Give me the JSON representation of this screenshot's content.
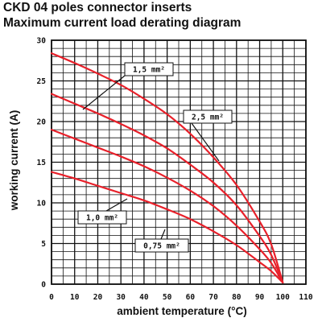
{
  "chart_data": {
    "type": "line",
    "title": "CKD 04 poles connector inserts",
    "subtitle": "Maximum current load derating diagram",
    "xlabel": "ambient temperature (°C)",
    "ylabel": "working current (A)",
    "xlim": [
      0,
      110
    ],
    "ylim": [
      0,
      30
    ],
    "x_ticks": [
      "0",
      "10",
      "20",
      "30",
      "40",
      "50",
      "60",
      "70",
      "80",
      "90",
      "100",
      "110"
    ],
    "y_ticks": [
      "0",
      "5",
      "10",
      "15",
      "20",
      "25",
      "30"
    ],
    "grid": true,
    "line_color": "#e8202a",
    "series": [
      {
        "name": "2,5 mm²",
        "points": [
          [
            0,
            28.4
          ],
          [
            10,
            27.2
          ],
          [
            20,
            25.9
          ],
          [
            30,
            24.5
          ],
          [
            40,
            22.8
          ],
          [
            50,
            20.9
          ],
          [
            60,
            18.5
          ],
          [
            70,
            15.6
          ],
          [
            80,
            12.2
          ],
          [
            90,
            7.7
          ],
          [
            95,
            4.9
          ],
          [
            100,
            0.2
          ]
        ]
      },
      {
        "name": "1,5 mm²",
        "points": [
          [
            0,
            23.4
          ],
          [
            10,
            22.2
          ],
          [
            20,
            21.0
          ],
          [
            30,
            19.7
          ],
          [
            40,
            18.3
          ],
          [
            50,
            16.7
          ],
          [
            60,
            14.7
          ],
          [
            70,
            12.5
          ],
          [
            80,
            9.7
          ],
          [
            90,
            5.9
          ],
          [
            95,
            3.6
          ],
          [
            100,
            0.2
          ]
        ]
      },
      {
        "name": "1,0 mm²",
        "points": [
          [
            0,
            19.0
          ],
          [
            10,
            17.9
          ],
          [
            20,
            16.8
          ],
          [
            30,
            15.7
          ],
          [
            40,
            14.5
          ],
          [
            50,
            13.1
          ],
          [
            60,
            11.5
          ],
          [
            70,
            9.6
          ],
          [
            80,
            7.2
          ],
          [
            90,
            4.3
          ],
          [
            95,
            2.6
          ],
          [
            100,
            0.2
          ]
        ]
      },
      {
        "name": "0,75 mm²",
        "points": [
          [
            0,
            13.8
          ],
          [
            10,
            13.0
          ],
          [
            20,
            12.1
          ],
          [
            30,
            11.2
          ],
          [
            40,
            10.3
          ],
          [
            50,
            9.2
          ],
          [
            60,
            8.0
          ],
          [
            70,
            6.5
          ],
          [
            80,
            4.8
          ],
          [
            90,
            2.7
          ],
          [
            95,
            1.6
          ],
          [
            100,
            0.2
          ]
        ]
      }
    ],
    "annotations": [
      {
        "text": "1,5 mm²",
        "series": "1,5 mm²"
      },
      {
        "text": "2,5 mm²",
        "series": "2,5 mm²"
      },
      {
        "text": "1,0 mm²",
        "series": "1,0 mm²"
      },
      {
        "text": "0,75 mm²",
        "series": "0,75 mm²"
      }
    ]
  }
}
